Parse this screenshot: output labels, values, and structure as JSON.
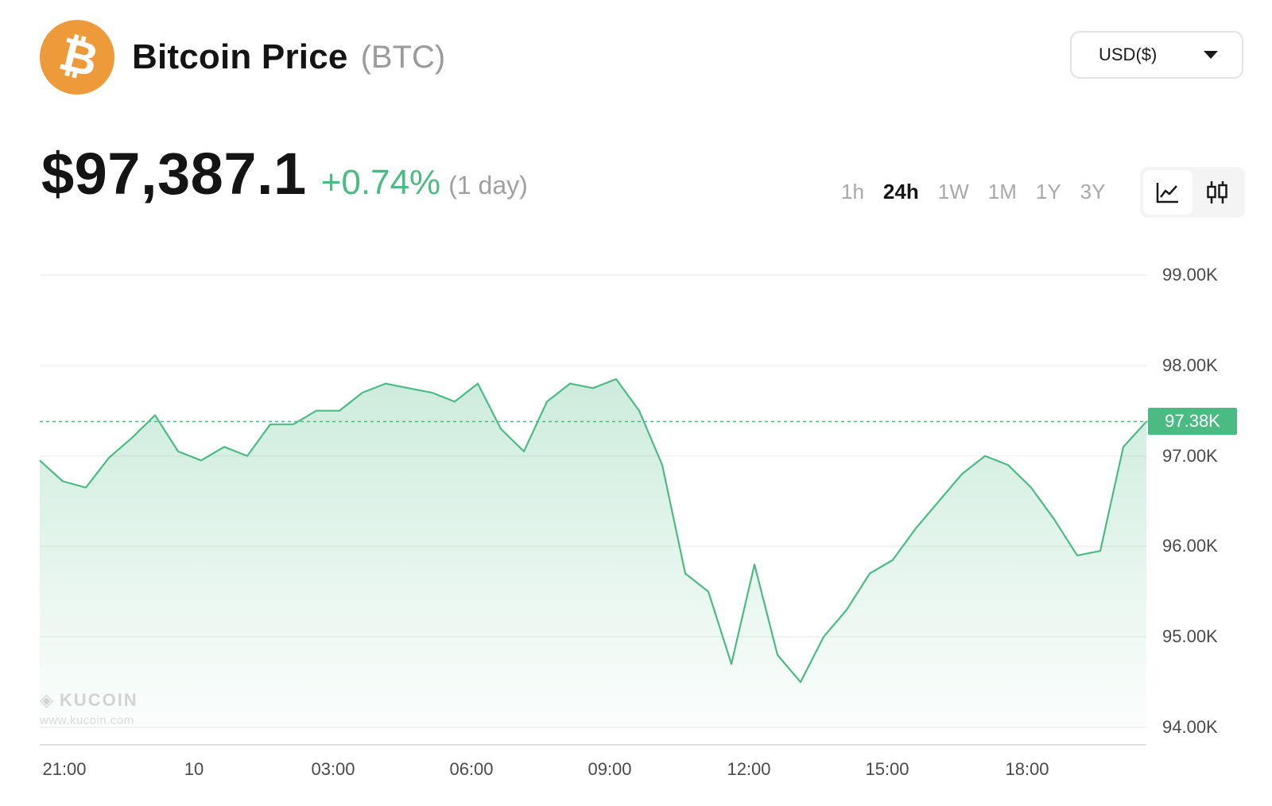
{
  "header": {
    "title": "Bitcoin Price",
    "ticker": "(BTC)",
    "logo_icon": "bitcoin-icon",
    "brand_color": "#ed9a3b"
  },
  "currency": {
    "selected": "USD($)",
    "icon": "caret-down-icon"
  },
  "price": {
    "value": "$97,387.1",
    "change": "+0.74%",
    "period": "(1 day)"
  },
  "timeframes": [
    {
      "label": "1h",
      "active": false
    },
    {
      "label": "24h",
      "active": true
    },
    {
      "label": "1W",
      "active": false
    },
    {
      "label": "1M",
      "active": false
    },
    {
      "label": "1Y",
      "active": false
    },
    {
      "label": "3Y",
      "active": false
    }
  ],
  "chart_types": [
    {
      "icon": "line-chart-icon",
      "active": true
    },
    {
      "icon": "candlestick-chart-icon",
      "active": false
    }
  ],
  "watermark": {
    "brand": "KUCOIN",
    "url": "www.kucoin.com"
  },
  "chart_data": {
    "type": "area",
    "accent_color": "#4cbb83",
    "x_tick_labels": [
      "21:00",
      "10",
      "03:00",
      "06:00",
      "09:00",
      "12:00",
      "15:00",
      "18:00"
    ],
    "y_tick_labels": [
      "99.00K",
      "98.00K",
      "97.00K",
      "96.00K",
      "95.00K",
      "94.00K"
    ],
    "y_ticks": [
      99000,
      98000,
      97000,
      96000,
      95000,
      94000
    ],
    "ylim": [
      94000,
      99000
    ],
    "grid": true,
    "current_value": 97380,
    "current_label": "97.38K",
    "x_hours": [
      0,
      0.5,
      1,
      1.5,
      2,
      2.5,
      3,
      3.5,
      4,
      4.5,
      5,
      5.5,
      6,
      6.5,
      7,
      7.5,
      8,
      8.5,
      9,
      9.5,
      10,
      10.5,
      11,
      11.5,
      12,
      12.5,
      13,
      13.5,
      14,
      14.5,
      15,
      15.5,
      16,
      16.5,
      17,
      17.5,
      18,
      18.5,
      19,
      19.5,
      20,
      20.5,
      21,
      21.5,
      22,
      22.5,
      23,
      23.5,
      24
    ],
    "x_start_label": "21:00",
    "values": [
      96950,
      96720,
      96650,
      96980,
      97200,
      97450,
      97050,
      96950,
      97100,
      97000,
      97350,
      97350,
      97500,
      97500,
      97700,
      97800,
      97750,
      97700,
      97600,
      97800,
      97300,
      97050,
      97600,
      97800,
      97750,
      97850,
      97500,
      96900,
      95700,
      95500,
      94700,
      95800,
      94800,
      94500,
      95000,
      95300,
      95700,
      95850,
      96200,
      96500,
      96800,
      97000,
      96900,
      96650,
      96300,
      95900,
      95950,
      97100,
      97380
    ]
  }
}
